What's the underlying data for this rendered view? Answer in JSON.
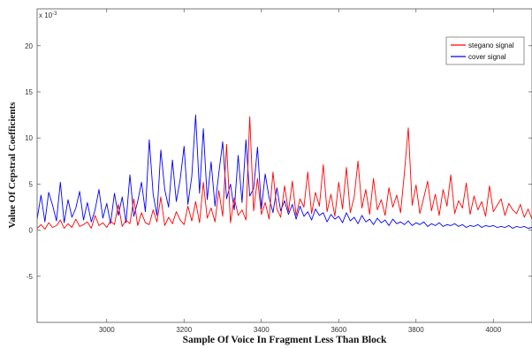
{
  "chart_data": {
    "type": "line",
    "title": "",
    "xlabel": "Sample Of Voice In Fragment Less Than Block",
    "ylabel": "Value Of Cepstral Coefficients",
    "y_exponent_label": "x 10",
    "y_exponent_power": "-3",
    "xlim": [
      2820,
      4100
    ],
    "ylim": [
      -10,
      24
    ],
    "x_ticks": [
      3000,
      3200,
      3400,
      3600,
      3800,
      4000
    ],
    "y_ticks": [
      -5,
      0,
      5,
      10,
      15,
      20
    ],
    "x_tick_labels": [
      "3000",
      "3200",
      "3400",
      "3600",
      "3800",
      "4000"
    ],
    "y_tick_labels": [
      "-5",
      "0",
      "5",
      "10",
      "15",
      "20"
    ],
    "grid": false,
    "legend_position": "top-right",
    "series": [
      {
        "name": "stegano signal",
        "color": "#ff0000",
        "x": [
          2820,
          2830,
          2840,
          2850,
          2860,
          2870,
          2880,
          2890,
          2900,
          2910,
          2920,
          2930,
          2940,
          2950,
          2960,
          2970,
          2980,
          2990,
          3000,
          3010,
          3020,
          3030,
          3040,
          3050,
          3060,
          3070,
          3080,
          3090,
          3100,
          3110,
          3120,
          3130,
          3140,
          3150,
          3160,
          3170,
          3180,
          3190,
          3200,
          3210,
          3220,
          3230,
          3240,
          3250,
          3260,
          3270,
          3280,
          3290,
          3300,
          3310,
          3320,
          3330,
          3340,
          3350,
          3360,
          3370,
          3380,
          3390,
          3400,
          3410,
          3420,
          3430,
          3440,
          3450,
          3460,
          3470,
          3480,
          3490,
          3500,
          3510,
          3520,
          3530,
          3540,
          3550,
          3560,
          3570,
          3580,
          3590,
          3600,
          3610,
          3620,
          3630,
          3640,
          3650,
          3660,
          3670,
          3680,
          3690,
          3700,
          3710,
          3720,
          3730,
          3740,
          3750,
          3760,
          3770,
          3780,
          3790,
          3800,
          3810,
          3820,
          3830,
          3840,
          3850,
          3860,
          3870,
          3880,
          3890,
          3900,
          3910,
          3920,
          3930,
          3940,
          3950,
          3960,
          3970,
          3980,
          3990,
          4000,
          4010,
          4020,
          4030,
          4040,
          4050,
          4060,
          4070,
          4080,
          4090,
          4100
        ],
        "values": [
          0.2,
          0.6,
          0.1,
          0.8,
          0.3,
          0.5,
          1.1,
          0.2,
          0.7,
          0.3,
          1.2,
          0.4,
          0.6,
          0.9,
          0.2,
          1.6,
          0.5,
          0.8,
          0.3,
          1.0,
          0.6,
          2.8,
          0.4,
          1.1,
          0.7,
          3.4,
          0.5,
          1.9,
          0.8,
          0.6,
          2.2,
          0.9,
          3.6,
          0.5,
          1.4,
          0.7,
          2.0,
          1.1,
          0.6,
          2.6,
          1.0,
          3.1,
          0.8,
          5.2,
          1.3,
          2.4,
          0.9,
          4.3,
          1.5,
          9.3,
          0.8,
          3.5,
          1.6,
          2.2,
          1.1,
          12.3,
          2.1,
          5.6,
          1.7,
          3.0,
          1.2,
          6.3,
          2.3,
          1.4,
          4.8,
          2.0,
          5.3,
          1.6,
          3.4,
          2.5,
          6.3,
          1.8,
          4.1,
          2.6,
          7.1,
          2.0,
          3.9,
          1.5,
          5.2,
          2.3,
          6.8,
          1.9,
          3.6,
          7.5,
          2.4,
          4.4,
          1.7,
          5.6,
          2.2,
          3.3,
          1.6,
          4.6,
          2.5,
          3.8,
          1.9,
          6.2,
          11.1,
          2.7,
          4.9,
          1.8,
          3.5,
          5.3,
          2.1,
          3.9,
          1.6,
          4.4,
          2.6,
          6.0,
          1.8,
          3.2,
          2.4,
          5.1,
          1.7,
          3.7,
          2.2,
          3.1,
          1.5,
          4.8,
          2.0,
          2.7,
          3.4,
          1.6,
          2.9,
          2.2,
          1.8,
          2.8,
          1.4,
          2.3,
          1.2
        ]
      },
      {
        "name": "cover signal",
        "color": "#0000ff",
        "x": [
          2820,
          2830,
          2840,
          2850,
          2860,
          2870,
          2880,
          2890,
          2900,
          2910,
          2920,
          2930,
          2940,
          2950,
          2960,
          2970,
          2980,
          2990,
          3000,
          3010,
          3020,
          3030,
          3040,
          3050,
          3060,
          3070,
          3080,
          3090,
          3100,
          3110,
          3120,
          3130,
          3140,
          3150,
          3160,
          3170,
          3180,
          3190,
          3200,
          3210,
          3220,
          3230,
          3240,
          3250,
          3260,
          3270,
          3280,
          3290,
          3300,
          3310,
          3320,
          3330,
          3340,
          3350,
          3360,
          3370,
          3380,
          3390,
          3400,
          3410,
          3420,
          3430,
          3440,
          3450,
          3460,
          3470,
          3480,
          3490,
          3500,
          3510,
          3520,
          3530,
          3540,
          3550,
          3560,
          3570,
          3580,
          3590,
          3600,
          3610,
          3620,
          3630,
          3640,
          3650,
          3660,
          3670,
          3680,
          3690,
          3700,
          3710,
          3720,
          3730,
          3740,
          3750,
          3760,
          3770,
          3780,
          3790,
          3800,
          3810,
          3820,
          3830,
          3840,
          3850,
          3860,
          3870,
          3880,
          3890,
          3900,
          3910,
          3920,
          3930,
          3940,
          3950,
          3960,
          3970,
          3980,
          3990,
          4000,
          4010,
          4020,
          4030,
          4040,
          4050,
          4060,
          4070,
          4080,
          4090,
          4100
        ],
        "values": [
          1.2,
          3.8,
          0.9,
          4.1,
          2.7,
          1.0,
          5.2,
          0.8,
          3.3,
          1.4,
          2.4,
          4.2,
          1.1,
          3.0,
          0.9,
          2.2,
          4.4,
          1.3,
          2.9,
          0.7,
          4.0,
          1.6,
          3.6,
          0.8,
          6.0,
          1.5,
          3.1,
          5.2,
          2.0,
          9.8,
          3.9,
          1.6,
          8.7,
          4.4,
          2.5,
          7.6,
          3.1,
          5.5,
          9.1,
          2.8,
          5.8,
          12.5,
          4.0,
          11.0,
          3.3,
          7.4,
          2.6,
          6.2,
          9.6,
          3.4,
          5.0,
          2.2,
          8.1,
          3.0,
          9.8,
          3.7,
          4.5,
          9.0,
          2.3,
          6.1,
          3.5,
          1.9,
          4.6,
          2.1,
          3.2,
          1.7,
          2.8,
          1.2,
          2.6,
          1.5,
          2.0,
          1.1,
          2.3,
          1.6,
          1.9,
          0.9,
          1.7,
          1.2,
          1.5,
          0.8,
          1.9,
          1.0,
          1.4,
          0.7,
          1.6,
          0.9,
          1.2,
          0.6,
          1.3,
          0.8,
          1.1,
          0.5,
          1.2,
          0.7,
          0.9,
          0.6,
          1.0,
          0.5,
          0.8,
          0.6,
          0.9,
          0.4,
          0.7,
          0.5,
          0.8,
          0.4,
          0.6,
          0.5,
          0.7,
          0.4,
          0.6,
          0.3,
          0.5,
          0.4,
          0.6,
          0.3,
          0.5,
          0.4,
          0.5,
          0.3,
          0.4,
          0.3,
          0.5,
          0.2,
          0.4,
          0.3,
          0.4,
          0.2,
          0.3
        ]
      }
    ]
  },
  "legend": {
    "items": [
      {
        "label": "stegano signal",
        "color": "#ff0000"
      },
      {
        "label": "cover signal",
        "color": "#0000ff"
      }
    ]
  }
}
